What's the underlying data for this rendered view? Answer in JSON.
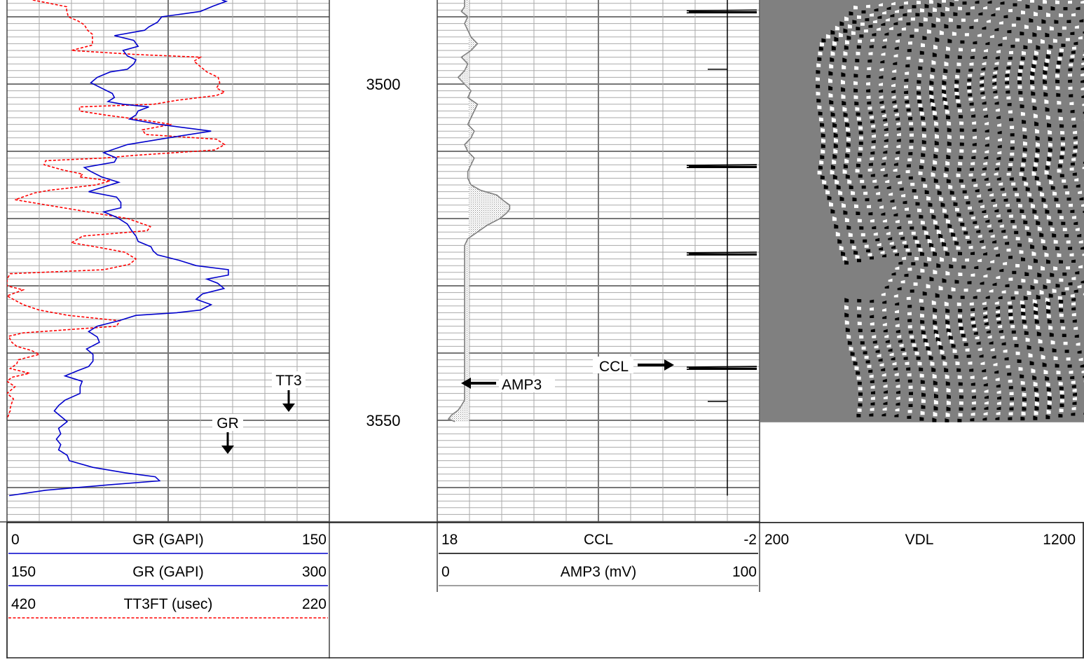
{
  "chart_data": {
    "type": "line",
    "depth_labels": [
      "3500",
      "3550"
    ],
    "depth_values": [
      3500,
      3550
    ],
    "depth_range": [
      3487.5,
      3565
    ],
    "tracks": [
      {
        "name": "track1",
        "scales": [
          {
            "mnemonic": "GR (GAPI)",
            "left": "0",
            "right": "150",
            "color": "#0000cc",
            "style": "solid"
          },
          {
            "mnemonic": "GR (GAPI)",
            "left": "150",
            "right": "300",
            "color": "#0000cc",
            "style": "solid"
          },
          {
            "mnemonic": "TT3FT (usec)",
            "left": "420",
            "right": "220",
            "color": "#ff0000",
            "style": "dashed"
          }
        ],
        "annotations": [
          {
            "text": "TT3",
            "arrow": "down"
          },
          {
            "text": "GR",
            "arrow": "down"
          }
        ]
      },
      {
        "name": "track2",
        "scales": [
          {
            "mnemonic": "CCL",
            "left": "18",
            "right": "-2",
            "color": "#000000",
            "style": "solid"
          },
          {
            "mnemonic": "AMP3 (mV)",
            "left": "0",
            "right": "100",
            "color": "#808080",
            "style": "solid"
          }
        ],
        "annotations": [
          {
            "text": "CCL",
            "arrow": "right"
          },
          {
            "text": "AMP3",
            "arrow": "left"
          }
        ]
      },
      {
        "name": "track3",
        "scales": [
          {
            "mnemonic": "VDL",
            "left": "200",
            "right": "1200",
            "color": "#000000",
            "style": "solid"
          }
        ]
      }
    ],
    "series": [
      {
        "name": "GR",
        "unit": "GAPI",
        "depth": [
          3487.5,
          3487.7,
          3488.4,
          3489.2,
          3490,
          3490.8,
          3491.5,
          3492,
          3492.8,
          3493.5,
          3494.4,
          3495,
          3495.8,
          3496.4,
          3497,
          3497.8,
          3498.2,
          3499,
          3499.8,
          3500.6,
          3501.4,
          3502,
          3502.6,
          3503,
          3503.4,
          3504,
          3504.6,
          3505.2,
          3506,
          3507,
          3508,
          3509,
          3510.2,
          3511,
          3511.6,
          3512.4,
          3513,
          3513.8,
          3514.6,
          3515.2,
          3516,
          3516.8,
          3517.6,
          3518.4,
          3519,
          3519.8,
          3520.8,
          3521.8,
          3522.6,
          3523.4,
          3524.2,
          3524.8,
          3525.4,
          3526.2,
          3527,
          3527.6,
          3528.4,
          3529,
          3529.6,
          3530.4,
          3531.2,
          3532,
          3532.8,
          3533.6,
          3534,
          3534.4,
          3535.2,
          3536,
          3536.8,
          3537.6,
          3538.4,
          3539.4,
          3540.2,
          3541.2,
          3542,
          3542.6,
          3543.4,
          3544.2,
          3545,
          3546,
          3547,
          3547.8,
          3548.6,
          3549.4,
          3550.2,
          3551.2,
          3552,
          3552.8,
          3553.6,
          3554.4,
          3555.2,
          3556,
          3557,
          3557.8,
          3558.4,
          3559,
          3559.6,
          3560.4,
          3561.2
        ],
        "values": [
          100,
          102,
          96,
          90,
          72,
          70,
          66,
          64,
          50,
          59,
          61,
          54,
          56,
          60,
          59,
          56,
          48,
          42,
          39,
          44,
          49,
          50,
          47,
          54,
          66,
          61,
          60,
          57,
          71,
          95,
          75,
          56,
          45,
          51,
          50,
          36,
          39,
          44,
          52,
          46,
          38,
          51,
          53,
          53,
          45,
          51,
          56,
          58,
          60,
          61,
          67,
          68,
          70,
          80,
          88,
          103,
          103,
          93,
          98,
          101,
          91,
          88,
          95,
          90,
          79,
          60,
          52,
          42,
          38,
          42,
          43,
          37,
          40,
          40,
          38,
          33,
          27,
          35,
          34,
          34,
          27,
          24,
          22,
          25,
          28,
          24,
          25,
          23,
          25,
          24,
          28,
          29,
          40,
          55,
          69,
          71,
          47,
          18,
          1
        ]
      },
      {
        "name": "TT3FT",
        "unit": "usec",
        "depth": [
          3487.5,
          3488.5,
          3489,
          3490,
          3490.6,
          3491.2,
          3492,
          3492.6,
          3493.4,
          3494.2,
          3495,
          3495.6,
          3496,
          3496.6,
          3497,
          3497.6,
          3498.2,
          3499,
          3499.8,
          3500.6,
          3501.2,
          3501.7,
          3502.4,
          3503,
          3503.4,
          3504,
          3504.6,
          3505.4,
          3506,
          3506.8,
          3507.5,
          3508.2,
          3509,
          3509.8,
          3510.6,
          3511,
          3511.4,
          3512,
          3512.8,
          3513.4,
          3513.8,
          3514.4,
          3515,
          3515.8,
          3516.2,
          3517.2,
          3518.2,
          3519,
          3520,
          3521.2,
          3521.8,
          3522.6,
          3523.6,
          3524.2,
          3525,
          3526,
          3526.8,
          3527.6,
          3528.2,
          3529,
          3530,
          3530.6,
          3531.5,
          3532.8,
          3533.6,
          3534.4,
          3535.2,
          3536,
          3537,
          3537.5,
          3538.4,
          3539,
          3539.6,
          3540.2,
          3541,
          3541.6,
          3542.3,
          3543,
          3543.6,
          3544.2,
          3545,
          3546,
          3546.8,
          3547.4,
          3548.2,
          3548.6,
          3549,
          3549.2,
          3549.8
        ],
        "values": [
          404,
          383,
          383,
          382,
          376,
          372,
          370,
          367,
          367,
          367,
          380,
          340,
          300,
          304,
          302,
          299,
          296,
          289,
          288,
          290,
          285,
          290,
          314,
          329,
          375,
          375,
          359,
          334,
          318,
          336,
          334,
          290,
          285,
          291,
          341,
          360,
          396,
          397,
          385,
          373,
          375,
          356,
          365,
          394,
          403,
          415,
          390,
          370,
          345,
          331,
          333,
          373,
          380,
          365,
          347,
          340,
          344,
          360,
          418,
          420,
          420,
          410,
          420,
          410,
          400,
          382,
          350,
          352,
          410,
          419,
          417,
          414,
          405,
          400,
          413,
          414,
          418,
          406,
          417,
          420,
          415,
          420,
          416,
          417,
          418,
          418,
          419,
          419,
          420
        ]
      },
      {
        "name": "AMP3",
        "unit": "mV",
        "depth": [
          3487.5,
          3488.5,
          3489.2,
          3490,
          3491,
          3492,
          3493,
          3494,
          3495,
          3496,
          3497,
          3498,
          3499,
          3500,
          3501,
          3502,
          3503,
          3504,
          3505,
          3506,
          3507,
          3508,
          3509,
          3510,
          3511,
          3512,
          3513,
          3514,
          3515,
          3515.8,
          3516.5,
          3517.3,
          3518,
          3518.6,
          3519.2,
          3520,
          3521,
          3522,
          3523,
          3524,
          3525,
          3526,
          3527,
          3528,
          3529,
          3530,
          3531,
          3532,
          3533,
          3534,
          3535,
          3536,
          3537,
          3538,
          3539,
          3540,
          3541,
          3542,
          3543,
          3544,
          3545,
          3546,
          3547,
          3547.8,
          3548.5,
          3549.2,
          3549.8,
          3550.2
        ],
        "values": [
          5,
          5,
          4,
          6,
          5,
          6,
          7,
          9,
          7,
          4,
          6,
          5,
          3,
          5,
          7,
          6,
          9,
          8,
          7,
          6,
          8,
          7,
          5,
          6,
          8,
          7,
          6,
          6,
          7,
          10,
          15,
          17,
          19,
          19,
          18,
          16,
          12,
          9,
          6,
          5,
          5,
          5,
          5,
          5,
          5,
          5,
          5,
          5,
          5,
          5,
          5,
          5,
          5,
          5,
          5,
          5,
          5,
          5,
          5,
          5,
          5,
          5,
          5,
          4,
          3,
          1,
          0,
          2
        ]
      },
      {
        "name": "CCL",
        "collar_depths": [
          3489.2,
          3512.2,
          3525.2,
          3542.2
        ],
        "small_ticks": [
          3497.8,
          3547.2
        ]
      }
    ],
    "vdl_end_depth": 3550.3,
    "grid": true
  }
}
